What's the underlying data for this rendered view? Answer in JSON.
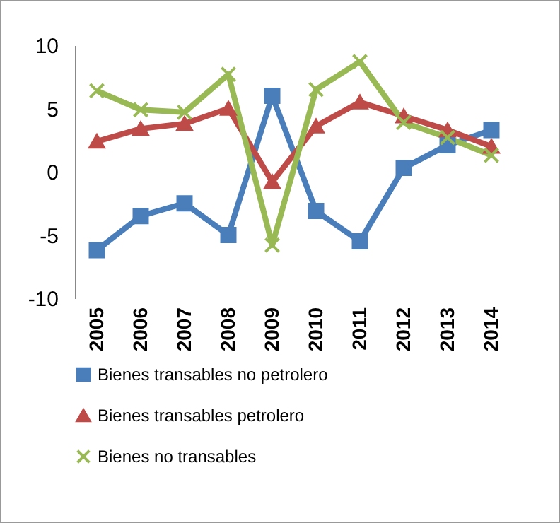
{
  "chart_data": {
    "type": "line",
    "categories": [
      "2005",
      "2006",
      "2007",
      "2008",
      "2009",
      "2010",
      "2011",
      "2012",
      "2013",
      "2014"
    ],
    "series": [
      {
        "name": "Bienes transables no petrolero",
        "color": "#4a7ebb",
        "marker": "square",
        "values": [
          -6.2,
          -3.5,
          -2.5,
          -5.0,
          6.0,
          -3.1,
          -5.5,
          0.3,
          2.1,
          3.3
        ]
      },
      {
        "name": "Bienes transables petrolero",
        "color": "#be4b48",
        "marker": "triangle",
        "values": [
          2.4,
          3.4,
          3.8,
          5.0,
          -0.8,
          3.6,
          5.5,
          4.4,
          3.3,
          2.0
        ]
      },
      {
        "name": "Bienes no transables",
        "color": "#98b954",
        "marker": "cross",
        "values": [
          6.4,
          4.9,
          4.7,
          7.7,
          -5.8,
          6.5,
          8.7,
          3.9,
          2.7,
          1.3
        ]
      }
    ],
    "ylim": [
      -10,
      10
    ],
    "yticks": [
      -10,
      -5,
      0,
      5,
      10
    ],
    "grid": false,
    "legend": "bottom"
  }
}
